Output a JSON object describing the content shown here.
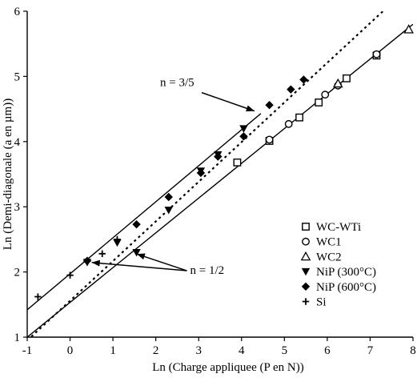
{
  "chart_data": {
    "type": "scatter",
    "xlabel": "Ln (Charge appliquee (P en N))",
    "ylabel": "Ln (Demi-diagonale (a en µm))",
    "xlim": [
      -1,
      8
    ],
    "ylim": [
      1,
      6
    ],
    "xticks": [
      -1,
      0,
      1,
      2,
      3,
      4,
      5,
      6,
      7,
      8
    ],
    "yticks": [
      1,
      2,
      3,
      4,
      5,
      6
    ],
    "grid": false,
    "legend_position": "bottom-right",
    "series": [
      {
        "name": "WC-WTi",
        "marker": "open-square",
        "points": [
          [
            3.9,
            3.68
          ],
          [
            4.65,
            4.01
          ],
          [
            5.35,
            4.37
          ],
          [
            5.8,
            4.6
          ],
          [
            6.45,
            4.97
          ],
          [
            7.15,
            5.32
          ]
        ]
      },
      {
        "name": "WC1",
        "marker": "open-circle",
        "points": [
          [
            4.65,
            4.03
          ],
          [
            5.1,
            4.27
          ],
          [
            5.95,
            4.72
          ],
          [
            6.25,
            4.86
          ],
          [
            7.15,
            5.34
          ]
        ]
      },
      {
        "name": "WC2",
        "marker": "open-triangle",
        "points": [
          [
            6.25,
            4.89
          ],
          [
            7.9,
            5.72
          ]
        ]
      },
      {
        "name": "NiP (300°C)",
        "marker": "filled-triangle-down",
        "points": [
          [
            0.4,
            2.15
          ],
          [
            1.1,
            2.45
          ],
          [
            1.55,
            2.3
          ],
          [
            2.3,
            2.95
          ],
          [
            3.05,
            3.55
          ],
          [
            3.45,
            3.8
          ],
          [
            4.05,
            4.2
          ]
        ]
      },
      {
        "name": "NiP (600°C)",
        "marker": "filled-diamond",
        "points": [
          [
            0.4,
            2.17
          ],
          [
            1.55,
            2.73
          ],
          [
            2.3,
            3.15
          ],
          [
            3.05,
            3.52
          ],
          [
            3.45,
            3.77
          ],
          [
            4.05,
            4.08
          ],
          [
            4.65,
            4.56
          ],
          [
            5.15,
            4.8
          ],
          [
            5.45,
            4.95
          ]
        ]
      },
      {
        "name": "Si",
        "marker": "plus",
        "points": [
          [
            -0.75,
            1.62
          ],
          [
            0.0,
            1.95
          ],
          [
            0.75,
            2.28
          ],
          [
            1.1,
            2.5
          ]
        ]
      }
    ],
    "lines": [
      {
        "style": "solid",
        "from": [
          -1,
          1.0
        ],
        "to": [
          8,
          5.8
        ]
      },
      {
        "style": "solid",
        "from": [
          -1,
          1.42
        ],
        "to": [
          4.45,
          4.43
        ]
      },
      {
        "style": "dotted",
        "from": [
          -1,
          0.95
        ],
        "to": [
          7.3,
          6.0
        ]
      }
    ],
    "annotations": [
      {
        "text": "n = 3/5",
        "label_at": [
          2.1,
          4.85
        ],
        "arrow_tip": [
          4.3,
          4.42
        ]
      },
      {
        "text": "n = 1/2",
        "label_at": [
          2.8,
          1.97
        ],
        "arrow_tips": [
          [
            0.45,
            2.17
          ],
          [
            1.5,
            2.3
          ]
        ]
      }
    ],
    "colors": {
      "marks": "#000000",
      "background": "#ffffff"
    }
  }
}
